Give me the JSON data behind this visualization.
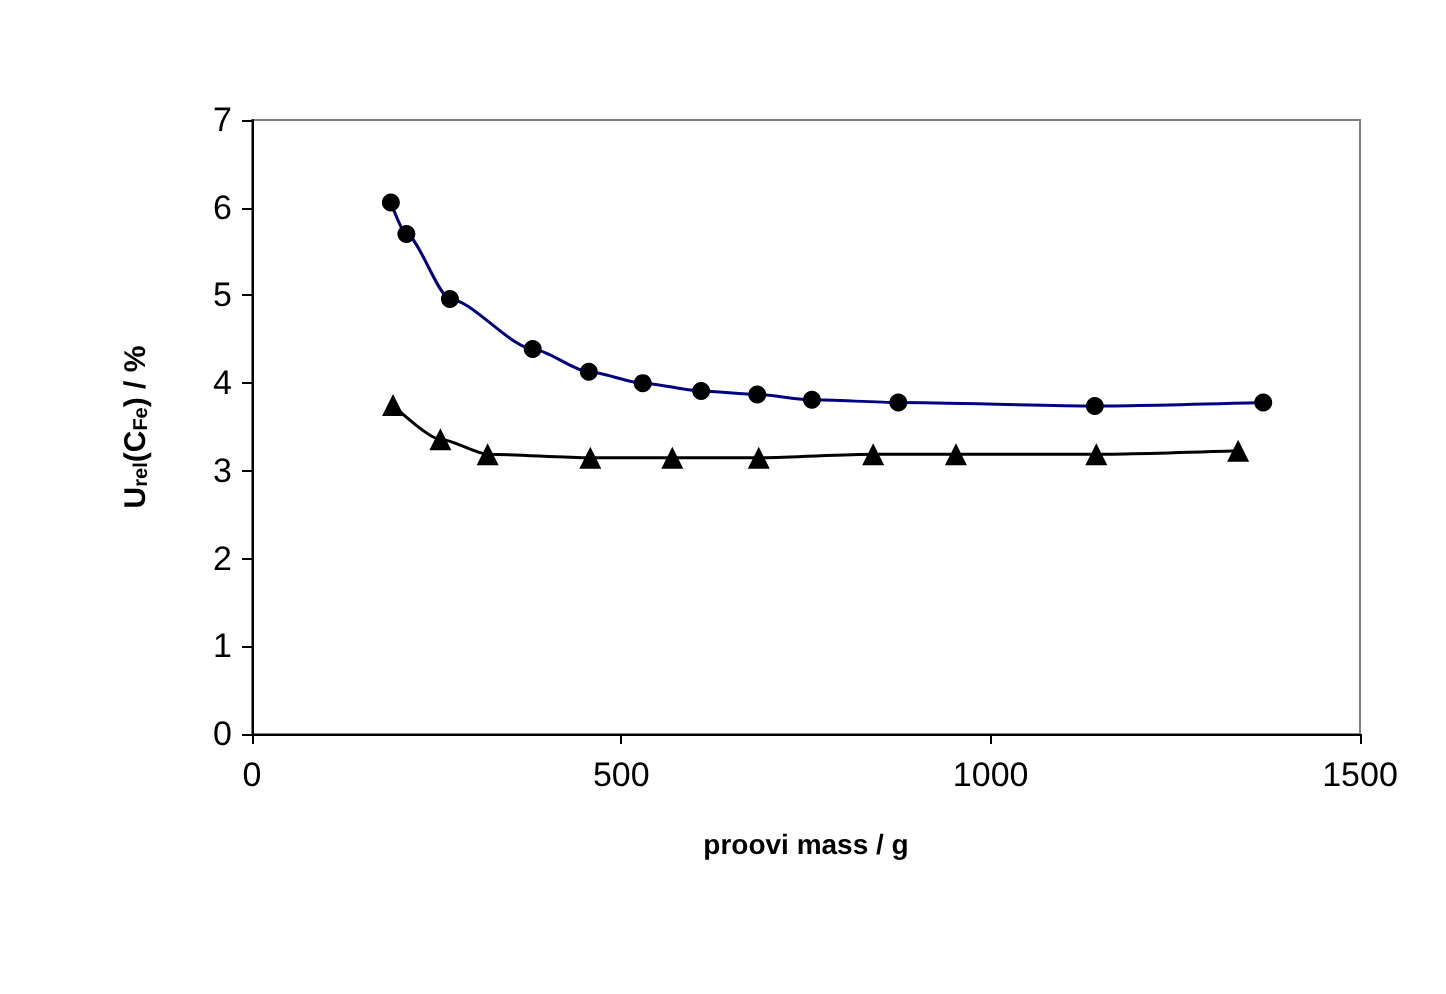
{
  "chart_data": {
    "type": "line",
    "xlabel": "proovi mass / g",
    "ylabel": "U$_{rel}$(C$_{Fe}$) / %",
    "xlim": [
      0,
      1500
    ],
    "xticks": [
      0,
      500,
      1000,
      1500
    ],
    "ylim": [
      0,
      7
    ],
    "yticks": [
      0,
      1,
      2,
      3,
      4,
      5,
      6,
      7
    ],
    "grid": false,
    "line_style": "solid",
    "series": [
      {
        "color": "#000080",
        "marker": "circle",
        "x": [
          188,
          209,
          268,
          380,
          456,
          529,
          608,
          684,
          758,
          875,
          1141,
          1369
        ],
        "values": [
          6.06,
          5.7,
          4.96,
          4.39,
          4.13,
          4.0,
          3.91,
          3.87,
          3.81,
          3.78,
          3.74,
          3.78
        ]
      },
      {
        "color": "#000000",
        "marker": "triangle",
        "x": [
          191,
          255,
          319,
          458,
          569,
          686,
          841,
          953,
          1143,
          1335
        ],
        "values": [
          3.75,
          3.36,
          3.19,
          3.15,
          3.15,
          3.15,
          3.19,
          3.19,
          3.19,
          3.23
        ]
      }
    ]
  }
}
